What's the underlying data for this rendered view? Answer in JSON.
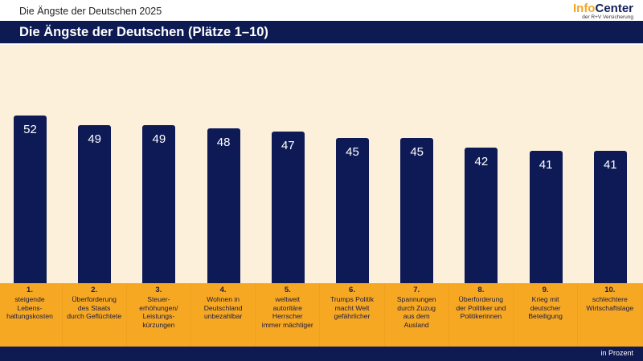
{
  "header": {
    "top_title": "Die Ängste der Deutschen 2025",
    "logo_info": "Info",
    "logo_center": "Center",
    "logo_sub": "der R+V Versicherung",
    "banner_title": "Die Ängste der Deutschen (Plätze 1–10)"
  },
  "footer": {
    "note": "in Prozent"
  },
  "colors": {
    "bar": "#0e1a56",
    "background": "#fcf0db",
    "category_band": "#f7a823",
    "banner": "#0e1a52"
  },
  "chart_data": {
    "type": "bar",
    "title": "Die Ängste der Deutschen (Plätze 1–10)",
    "xlabel": "",
    "ylabel": "in Prozent",
    "ylim": [
      0,
      52
    ],
    "grid": false,
    "categories": [
      {
        "rank": "1.",
        "lines": [
          "steigende",
          "Lebens-",
          "haltungskosten"
        ]
      },
      {
        "rank": "2.",
        "lines": [
          "Überforderung",
          "des Staats",
          "durch Geflüchtete"
        ]
      },
      {
        "rank": "3.",
        "lines": [
          "Steuer-",
          "erhöhungen/",
          "Leistungs-",
          "kürzungen"
        ]
      },
      {
        "rank": "4.",
        "lines": [
          "Wohnen in",
          "Deutschland",
          "unbezahlbar"
        ]
      },
      {
        "rank": "5.",
        "lines": [
          "weltweit",
          "autoritäre",
          "Herrscher",
          "immer mächtiger"
        ]
      },
      {
        "rank": "6.",
        "lines": [
          "Trumps Politik",
          "macht Welt",
          "gefährlicher"
        ]
      },
      {
        "rank": "7.",
        "lines": [
          "Spannungen",
          "durch Zuzug",
          "aus dem",
          "Ausland"
        ]
      },
      {
        "rank": "8.",
        "lines": [
          "Überforderung",
          "der Politiker und",
          "Politikerinnen"
        ]
      },
      {
        "rank": "9.",
        "lines": [
          "Krieg mit",
          "deutscher",
          "Beteiligung"
        ]
      },
      {
        "rank": "10.",
        "lines": [
          "schlechtere",
          "Wirtschaftslage"
        ]
      }
    ],
    "values": [
      52,
      49,
      49,
      48,
      47,
      45,
      45,
      42,
      41,
      41
    ]
  }
}
